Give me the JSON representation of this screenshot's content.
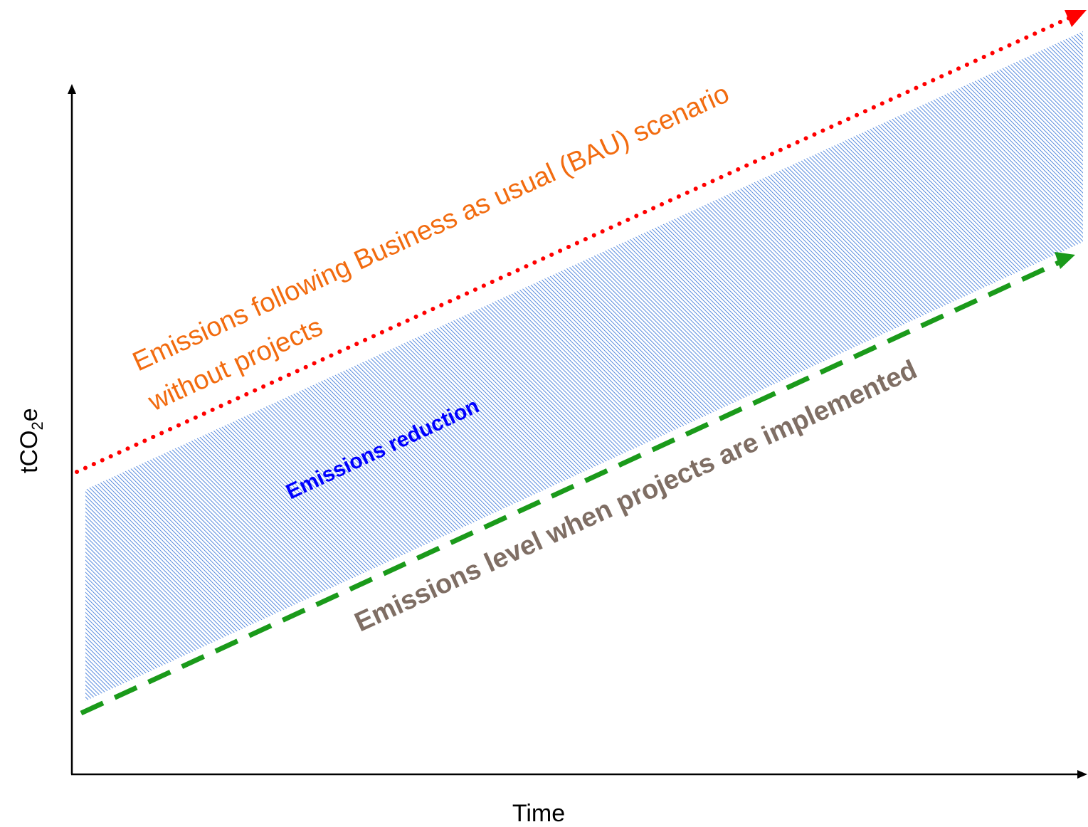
{
  "diagram": {
    "axes": {
      "x_label": "Time",
      "y_label_main": "tCO",
      "y_label_sub": "2",
      "y_label_end": "e"
    },
    "bau_line": {
      "label_line1": "Emissions following Business as usual (BAU) scenario",
      "label_line2": "without projects",
      "color": "#ff0000",
      "label_color": "#f26b0f",
      "style": "dotted"
    },
    "project_line": {
      "label": "Emissions level when projects are implemented",
      "color": "#1a9a1a",
      "label_color": "#7f6e64",
      "style": "dashed"
    },
    "reduction_area": {
      "label": "Emissions reduction",
      "label_color": "#0000ff",
      "fill_color": "#2f6fd6"
    },
    "axis_color": "#000000"
  }
}
